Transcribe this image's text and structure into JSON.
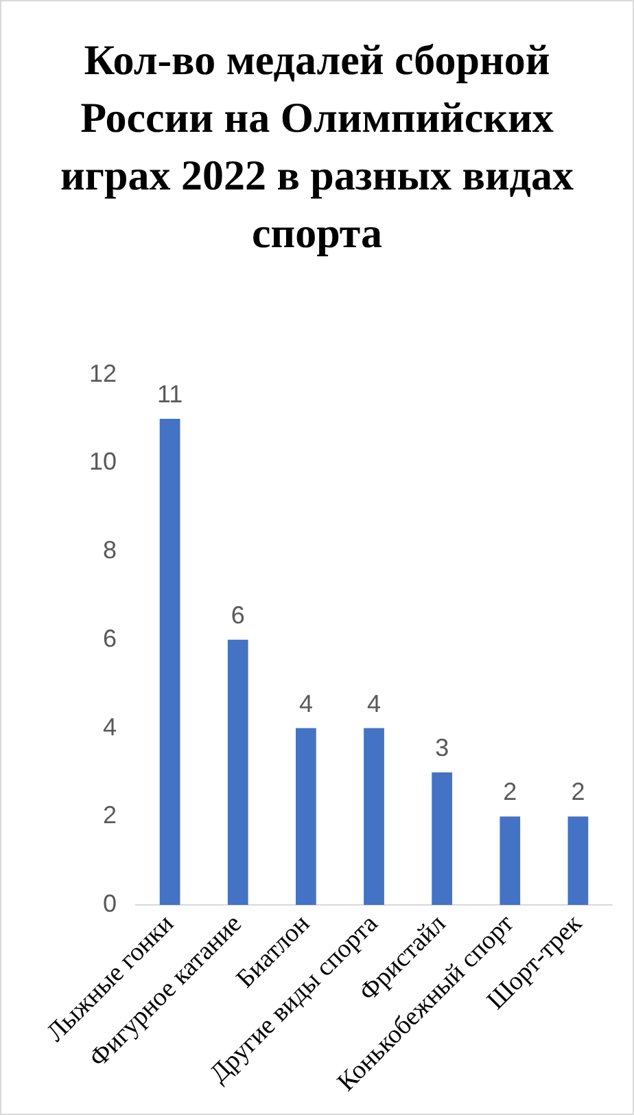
{
  "chart_data": {
    "type": "bar",
    "title": "Кол-во медалей сборной России на Олимпийских играх 2022 в разных видах спорта",
    "categories": [
      "Лыжные гонки",
      "Фигурное катание",
      "Биатлон",
      "Другие виды спорта",
      "Фристайл",
      "Конькобежный спорт",
      "Шорт-трек"
    ],
    "values": [
      11,
      6,
      4,
      4,
      3,
      2,
      2
    ],
    "color": "#4472c4",
    "ylim": [
      0,
      12
    ],
    "yticks": [
      0,
      2,
      4,
      6,
      8,
      10,
      12
    ],
    "grid": false,
    "legend": false,
    "data_labels": true
  }
}
